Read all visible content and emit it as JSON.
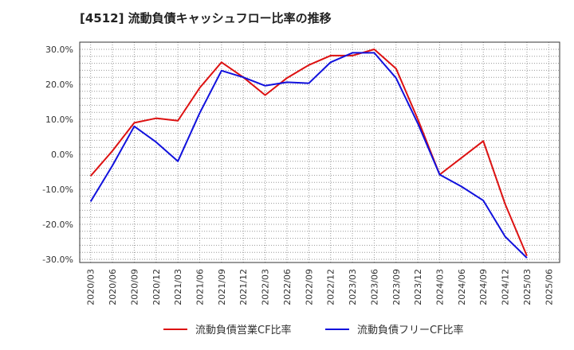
{
  "chart_data": {
    "type": "line",
    "title": "[4512]  流動負債キャッシュフロー比率の推移",
    "xlabel": "",
    "ylabel": "",
    "ylim": [
      -30,
      30
    ],
    "yticks": [
      30,
      20,
      10,
      0,
      -10,
      -20,
      -30
    ],
    "ytick_labels": [
      "30.0%",
      "20.0%",
      "10.0%",
      "0.0%",
      "-10.0%",
      "-20.0%",
      "-30.0%"
    ],
    "categories": [
      "2020/03",
      "2020/06",
      "2020/09",
      "2020/12",
      "2021/03",
      "2021/06",
      "2021/09",
      "2021/12",
      "2022/03",
      "2022/06",
      "2022/09",
      "2022/12",
      "2023/03",
      "2023/06",
      "2023/09",
      "2023/12",
      "2024/03",
      "2024/06",
      "2024/09",
      "2024/12",
      "2025/03",
      "2025/06"
    ],
    "grid": true,
    "legend_position": "bottom",
    "series": [
      {
        "name": "流動負債営業CF比率",
        "color": "#dd1111",
        "values": [
          -6.2,
          1.0,
          9.0,
          10.3,
          9.6,
          19.0,
          26.3,
          22.0,
          16.9,
          21.8,
          25.5,
          28.2,
          28.2,
          30.0,
          24.5,
          10.0,
          -5.8,
          -1.0,
          3.8,
          -14.2,
          -29.0,
          null
        ]
      },
      {
        "name": "流動負債フリーCF比率",
        "color": "#1111dd",
        "values": [
          -13.5,
          -3.2,
          8.0,
          3.5,
          -2.0,
          11.8,
          23.9,
          22.0,
          19.6,
          20.6,
          20.3,
          26.3,
          29.0,
          29.0,
          21.8,
          8.8,
          -5.8,
          -9.2,
          -13.2,
          -23.5,
          -29.6,
          null
        ]
      }
    ]
  }
}
